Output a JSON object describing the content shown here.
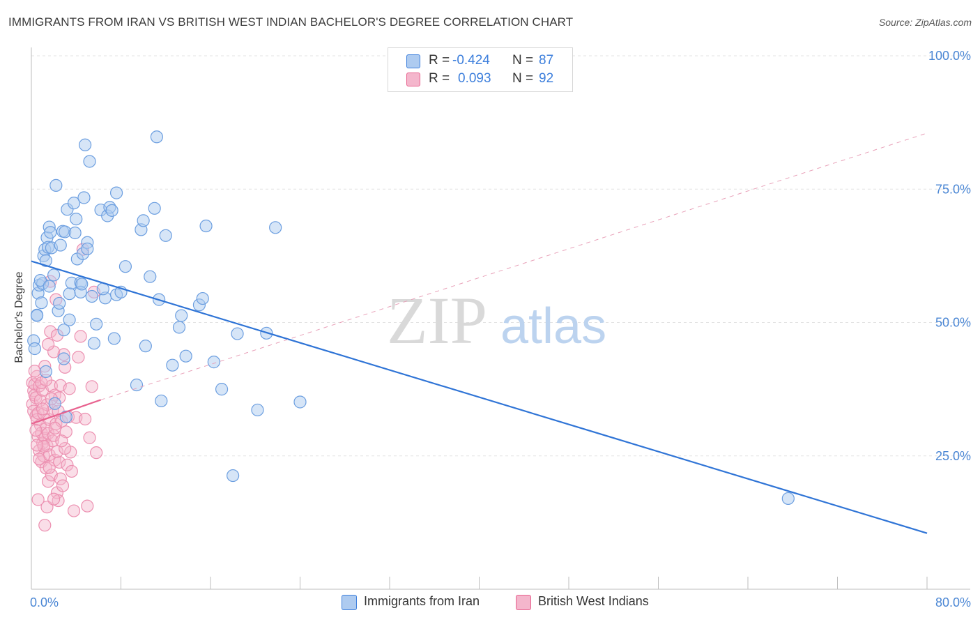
{
  "title": "IMMIGRANTS FROM IRAN VS BRITISH WEST INDIAN BACHELOR'S DEGREE CORRELATION CHART",
  "source": "Source: ZipAtlas.com",
  "watermark": {
    "zip": "ZIP",
    "atlas": "atlas"
  },
  "colors": {
    "blue": "#3d7fdc",
    "blue_fill": "#aecbf0",
    "pink": "#e8628f",
    "pink_fill": "#f4b6cc",
    "grid": "#e6e6e6",
    "axis_text": "#4a86d4"
  },
  "legend": {
    "r_label": "R =",
    "n_label": "N =",
    "series1": {
      "r": "-0.424",
      "n": "87"
    },
    "series2": {
      "r": "0.093",
      "n": "92"
    }
  },
  "chart_data": {
    "type": "scatter",
    "xlabel": "",
    "ylabel": "Bachelor's Degree",
    "xlim": [
      0,
      80
    ],
    "ylim": [
      0,
      100
    ],
    "x_tick_labels": [
      "0.0%",
      "80.0%"
    ],
    "y_tick_labels": [
      "100.0%",
      "75.0%",
      "50.0%",
      "25.0%"
    ],
    "y_tick_values": [
      100,
      75,
      50,
      25
    ],
    "series": [
      {
        "name": "Immigrants from Iran",
        "color": "#3d7fdc",
        "trendline": {
          "x": [
            0,
            80
          ],
          "y": [
            61.5,
            10.5
          ],
          "style": "solid"
        },
        "points": [
          [
            0.2,
            46.6
          ],
          [
            0.3,
            45.1
          ],
          [
            0.5,
            51.4
          ],
          [
            0.6,
            55.5
          ],
          [
            0.7,
            57.0
          ],
          [
            0.9,
            53.7
          ],
          [
            1.0,
            57.3
          ],
          [
            1.1,
            62.5
          ],
          [
            1.2,
            63.7
          ],
          [
            1.3,
            61.6
          ],
          [
            1.4,
            65.9
          ],
          [
            1.5,
            64.1
          ],
          [
            1.6,
            67.9
          ],
          [
            1.7,
            66.9
          ],
          [
            1.8,
            64.0
          ],
          [
            2.0,
            58.9
          ],
          [
            2.2,
            75.7
          ],
          [
            2.4,
            52.2
          ],
          [
            2.5,
            53.6
          ],
          [
            2.6,
            64.5
          ],
          [
            2.8,
            67.1
          ],
          [
            2.9,
            48.6
          ],
          [
            3.0,
            67.0
          ],
          [
            3.2,
            71.2
          ],
          [
            3.4,
            55.4
          ],
          [
            3.6,
            57.4
          ],
          [
            3.8,
            72.4
          ],
          [
            3.9,
            66.8
          ],
          [
            4.0,
            69.4
          ],
          [
            4.1,
            61.9
          ],
          [
            4.4,
            57.5
          ],
          [
            4.4,
            55.7
          ],
          [
            4.5,
            57.2
          ],
          [
            4.6,
            62.9
          ],
          [
            4.7,
            73.4
          ],
          [
            4.8,
            83.3
          ],
          [
            5.0,
            65.0
          ],
          [
            5.0,
            63.8
          ],
          [
            5.2,
            80.2
          ],
          [
            5.4,
            54.9
          ],
          [
            5.6,
            46.1
          ],
          [
            6.2,
            71.1
          ],
          [
            6.6,
            54.6
          ],
          [
            6.8,
            70.0
          ],
          [
            7.0,
            71.6
          ],
          [
            7.2,
            71.0
          ],
          [
            7.4,
            47.0
          ],
          [
            7.6,
            74.3
          ],
          [
            7.6,
            55.2
          ],
          [
            8.0,
            55.7
          ],
          [
            8.4,
            60.5
          ],
          [
            9.4,
            38.3
          ],
          [
            9.8,
            67.4
          ],
          [
            10.0,
            69.1
          ],
          [
            10.2,
            45.6
          ],
          [
            10.6,
            58.6
          ],
          [
            11.0,
            71.4
          ],
          [
            11.2,
            84.8
          ],
          [
            11.4,
            54.3
          ],
          [
            11.6,
            35.3
          ],
          [
            12.0,
            66.3
          ],
          [
            12.6,
            42.0
          ],
          [
            13.2,
            49.1
          ],
          [
            13.4,
            51.3
          ],
          [
            13.8,
            43.7
          ],
          [
            15.0,
            53.3
          ],
          [
            15.3,
            54.5
          ],
          [
            15.6,
            68.1
          ],
          [
            16.3,
            42.6
          ],
          [
            17.0,
            37.5
          ],
          [
            18.0,
            21.3
          ],
          [
            18.4,
            47.9
          ],
          [
            20.2,
            33.6
          ],
          [
            21.0,
            48.0
          ],
          [
            21.8,
            67.8
          ],
          [
            24.0,
            35.1
          ],
          [
            67.6,
            17.0
          ],
          [
            0.5,
            51.3
          ],
          [
            0.8,
            57.9
          ],
          [
            1.3,
            40.8
          ],
          [
            1.6,
            56.8
          ],
          [
            2.1,
            34.8
          ],
          [
            2.9,
            43.2
          ],
          [
            3.4,
            50.5
          ],
          [
            5.8,
            49.7
          ],
          [
            6.4,
            56.3
          ],
          [
            3.1,
            32.3
          ]
        ]
      },
      {
        "name": "British West Indians",
        "color": "#e8628f",
        "trendline_solid": {
          "x": [
            0,
            6.2
          ],
          "y": [
            31.0,
            35.5
          ]
        },
        "trendline_dashed": {
          "x": [
            6.2,
            80
          ],
          "y": [
            35.5,
            85.5
          ]
        },
        "points": [
          [
            0.1,
            38.7
          ],
          [
            0.1,
            34.7
          ],
          [
            0.2,
            37.2
          ],
          [
            0.2,
            33.4
          ],
          [
            0.3,
            38.4
          ],
          [
            0.3,
            36.4
          ],
          [
            0.4,
            32.5
          ],
          [
            0.4,
            35.9
          ],
          [
            0.5,
            31.8
          ],
          [
            0.5,
            39.9
          ],
          [
            0.6,
            28.6
          ],
          [
            0.6,
            33.0
          ],
          [
            0.7,
            38.1
          ],
          [
            0.7,
            26.0
          ],
          [
            0.8,
            30.8
          ],
          [
            0.8,
            35.4
          ],
          [
            0.9,
            23.9
          ],
          [
            0.9,
            29.3
          ],
          [
            1.0,
            27.4
          ],
          [
            1.0,
            37.3
          ],
          [
            1.1,
            32.9
          ],
          [
            1.1,
            25.0
          ],
          [
            1.2,
            28.3
          ],
          [
            1.2,
            41.8
          ],
          [
            1.3,
            30.1
          ],
          [
            1.3,
            22.7
          ],
          [
            1.4,
            26.9
          ],
          [
            1.4,
            34.6
          ],
          [
            1.5,
            29.2
          ],
          [
            1.5,
            20.2
          ],
          [
            1.6,
            31.8
          ],
          [
            1.6,
            25.2
          ],
          [
            1.7,
            57.7
          ],
          [
            1.7,
            48.3
          ],
          [
            1.8,
            38.1
          ],
          [
            1.8,
            21.4
          ],
          [
            1.9,
            33.5
          ],
          [
            1.9,
            27.8
          ],
          [
            2.0,
            44.5
          ],
          [
            2.0,
            28.8
          ],
          [
            2.1,
            36.4
          ],
          [
            2.1,
            24.2
          ],
          [
            2.2,
            31.0
          ],
          [
            2.2,
            54.3
          ],
          [
            2.3,
            47.6
          ],
          [
            2.3,
            18.1
          ],
          [
            2.4,
            33.4
          ],
          [
            2.4,
            16.6
          ],
          [
            2.5,
            35.9
          ],
          [
            2.5,
            23.8
          ],
          [
            2.6,
            38.2
          ],
          [
            2.6,
            20.7
          ],
          [
            2.7,
            31.5
          ],
          [
            2.8,
            19.4
          ],
          [
            2.9,
            44.0
          ],
          [
            3.0,
            41.6
          ],
          [
            3.1,
            29.5
          ],
          [
            3.2,
            23.3
          ],
          [
            3.3,
            32.3
          ],
          [
            3.4,
            37.6
          ],
          [
            3.5,
            25.7
          ],
          [
            3.6,
            22.1
          ],
          [
            3.8,
            14.7
          ],
          [
            4.0,
            32.2
          ],
          [
            4.2,
            43.5
          ],
          [
            4.4,
            47.4
          ],
          [
            4.6,
            63.7
          ],
          [
            4.8,
            31.9
          ],
          [
            5.0,
            15.6
          ],
          [
            5.2,
            28.4
          ],
          [
            5.4,
            38.0
          ],
          [
            5.6,
            55.7
          ],
          [
            5.8,
            25.6
          ],
          [
            1.2,
            12.0
          ],
          [
            0.6,
            16.8
          ],
          [
            1.4,
            15.4
          ],
          [
            2.0,
            16.9
          ],
          [
            0.9,
            38.7
          ],
          [
            1.5,
            45.9
          ],
          [
            1.1,
            26.8
          ],
          [
            0.3,
            40.9
          ],
          [
            0.4,
            29.8
          ],
          [
            0.7,
            24.4
          ],
          [
            2.3,
            25.8
          ],
          [
            1.8,
            35.7
          ],
          [
            3.0,
            26.4
          ],
          [
            1.0,
            33.8
          ],
          [
            2.7,
            27.8
          ],
          [
            0.5,
            27.0
          ],
          [
            1.3,
            39.2
          ],
          [
            1.6,
            22.8
          ],
          [
            2.1,
            30.2
          ]
        ]
      }
    ]
  }
}
